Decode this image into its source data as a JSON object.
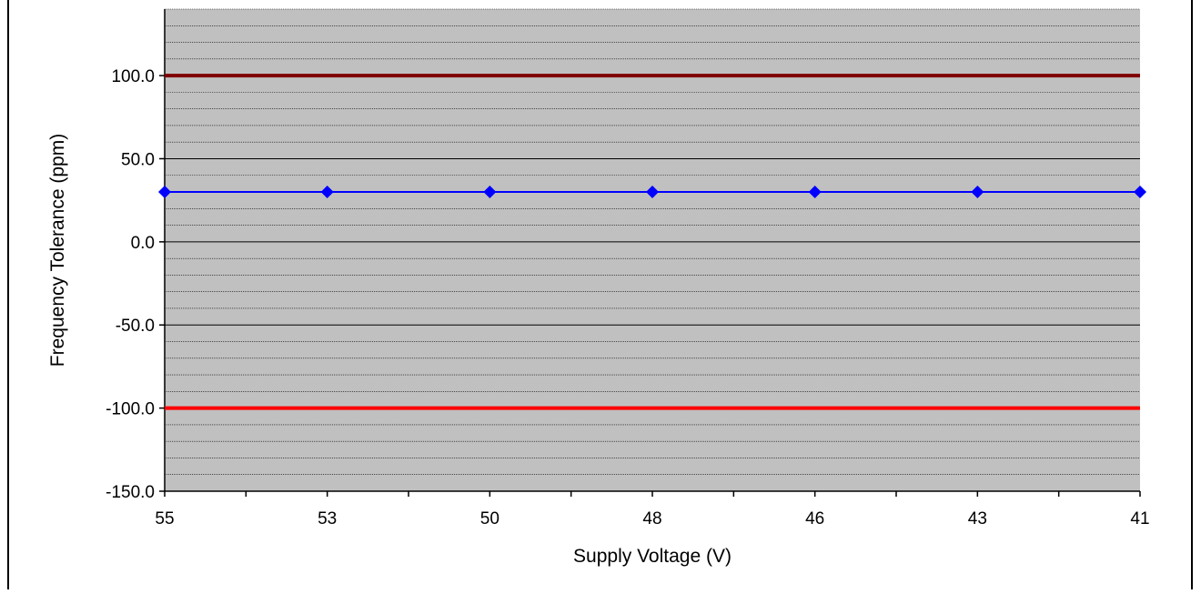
{
  "chart_data": {
    "type": "line",
    "title": "",
    "xlabel": "Supply Voltage (V)",
    "ylabel": "Frequency Tolerance (ppm)",
    "categories": [
      "55",
      "53",
      "50",
      "48",
      "46",
      "43",
      "41"
    ],
    "ylim": [
      -150,
      140
    ],
    "y_ticks": [
      "100.0",
      "50.0",
      "0.0",
      "-50.0",
      "-100.0",
      "-150.0"
    ],
    "grid": true,
    "plot_background": "#c0c0c0",
    "series": [
      {
        "values": [
          30,
          30,
          30,
          30,
          30,
          30,
          30
        ],
        "color": "#0000ff",
        "marker": "diamond"
      },
      {
        "values": [
          100,
          100,
          100,
          100,
          100,
          100,
          100
        ],
        "color": "#800000",
        "marker": "none"
      },
      {
        "values": [
          -100,
          -100,
          -100,
          -100,
          -100,
          -100,
          -100
        ],
        "color": "#ff0000",
        "marker": "none"
      }
    ]
  }
}
